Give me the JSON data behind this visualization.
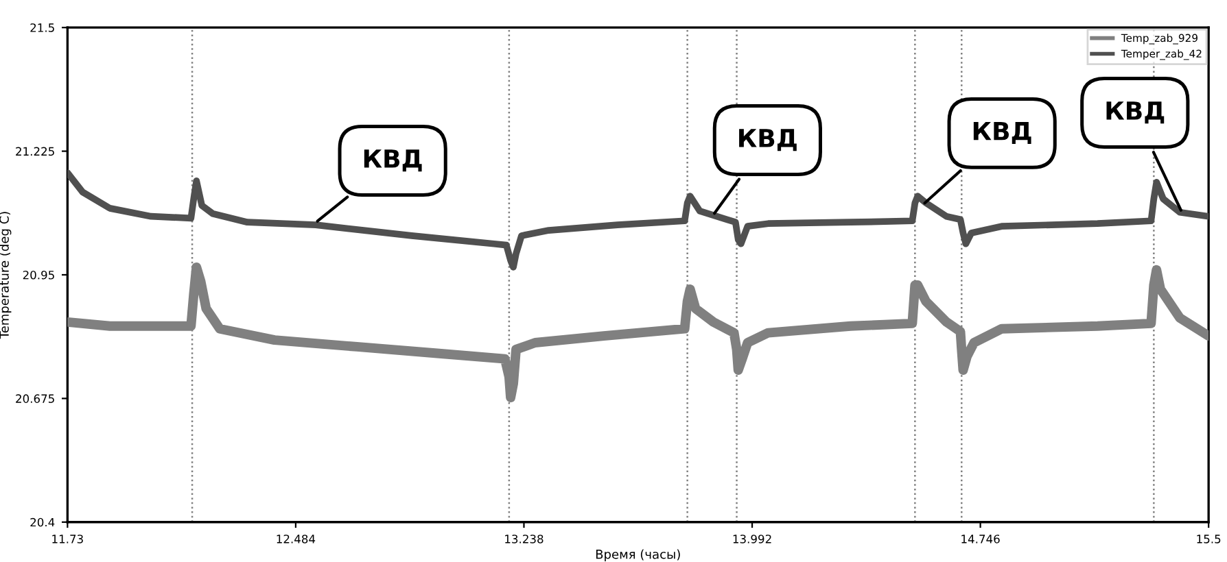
{
  "chart_data": {
    "type": "line",
    "xlabel": "Время (часы)",
    "ylabel": "Temperature (deg C)",
    "xlim": [
      11.73,
      15.5
    ],
    "xticks": [
      11.73,
      12.484,
      13.238,
      13.992,
      14.746,
      15.5
    ],
    "ylim": [
      20.4,
      21.5
    ],
    "yticks": [
      20.4,
      20.675,
      20.95,
      21.225,
      21.5
    ],
    "grid": false,
    "legend": "top right",
    "line_style": "solid",
    "series": [
      {
        "name": "Temp_zab_929",
        "color": "#808080",
        "x": [
          11.73,
          11.87,
          12.138,
          12.147,
          12.156,
          12.17,
          12.188,
          12.233,
          12.414,
          12.686,
          12.958,
          13.175,
          13.189,
          13.194,
          13.203,
          13.212,
          13.275,
          13.502,
          13.769,
          13.778,
          13.787,
          13.805,
          13.864,
          13.932,
          13.941,
          13.946,
          13.959,
          13.977,
          14.045,
          14.317,
          14.521,
          14.53,
          14.539,
          14.566,
          14.634,
          14.68,
          14.684,
          14.689,
          14.702,
          14.725,
          14.816,
          15.133,
          15.31,
          15.319,
          15.328,
          15.341,
          15.405,
          15.5
        ],
        "values": [
          20.845,
          20.836,
          20.836,
          20.906,
          20.967,
          20.936,
          20.875,
          20.83,
          20.805,
          20.79,
          20.775,
          20.763,
          20.723,
          20.677,
          20.708,
          20.784,
          20.799,
          20.814,
          20.83,
          20.891,
          20.918,
          20.875,
          20.845,
          20.821,
          20.784,
          20.738,
          20.763,
          20.799,
          20.821,
          20.836,
          20.842,
          20.927,
          20.927,
          20.891,
          20.845,
          20.824,
          20.784,
          20.738,
          20.769,
          20.799,
          20.83,
          20.836,
          20.842,
          20.927,
          20.961,
          20.918,
          20.854,
          20.814
        ]
      },
      {
        "name": "Temper_zab_42",
        "color": "#505050",
        "x": [
          11.73,
          11.78,
          11.87,
          12.006,
          12.138,
          12.147,
          12.156,
          12.174,
          12.21,
          12.324,
          12.55,
          12.867,
          13.139,
          13.18,
          13.194,
          13.203,
          13.212,
          13.23,
          13.32,
          13.547,
          13.769,
          13.778,
          13.787,
          13.819,
          13.909,
          13.937,
          13.946,
          13.955,
          13.977,
          14.045,
          14.317,
          14.521,
          14.53,
          14.539,
          14.566,
          14.634,
          14.68,
          14.689,
          14.698,
          14.716,
          14.816,
          15.133,
          15.31,
          15.319,
          15.328,
          15.35,
          15.405,
          15.5
        ],
        "values": [
          21.177,
          21.134,
          21.098,
          21.08,
          21.076,
          21.119,
          21.159,
          21.104,
          21.086,
          21.067,
          21.061,
          21.037,
          21.019,
          21.016,
          20.982,
          20.967,
          20.997,
          21.037,
          21.049,
          21.061,
          21.07,
          21.11,
          21.125,
          21.092,
          21.073,
          21.067,
          21.028,
          21.019,
          21.058,
          21.064,
          21.067,
          21.07,
          21.11,
          21.125,
          21.11,
          21.08,
          21.073,
          21.043,
          21.019,
          21.043,
          21.058,
          21.064,
          21.07,
          21.119,
          21.156,
          21.119,
          21.089,
          21.08
        ]
      }
    ],
    "ref_lines": [
      {
        "axis": "x",
        "value": 12.142,
        "line_style": "dotted",
        "color": "#808080"
      },
      {
        "axis": "x",
        "value": 13.189,
        "line_style": "dotted",
        "color": "#808080"
      },
      {
        "axis": "x",
        "value": 13.778,
        "line_style": "dotted",
        "color": "#808080"
      },
      {
        "axis": "x",
        "value": 13.941,
        "line_style": "dotted",
        "color": "#808080"
      },
      {
        "axis": "x",
        "value": 14.53,
        "line_style": "dotted",
        "color": "#808080"
      },
      {
        "axis": "x",
        "value": 14.684,
        "line_style": "dotted",
        "color": "#808080"
      },
      {
        "axis": "x",
        "value": 15.319,
        "line_style": "dotted",
        "color": "#808080"
      }
    ],
    "annotations": [
      {
        "text": "КВД",
        "x": 12.546,
        "y": 21.064
      },
      {
        "text": "КВД",
        "x": 13.86,
        "y": 21.08
      },
      {
        "text": "КВД",
        "x": 14.553,
        "y": 21.104
      },
      {
        "text": "КВД",
        "x": 15.414,
        "y": 21.086
      }
    ]
  }
}
